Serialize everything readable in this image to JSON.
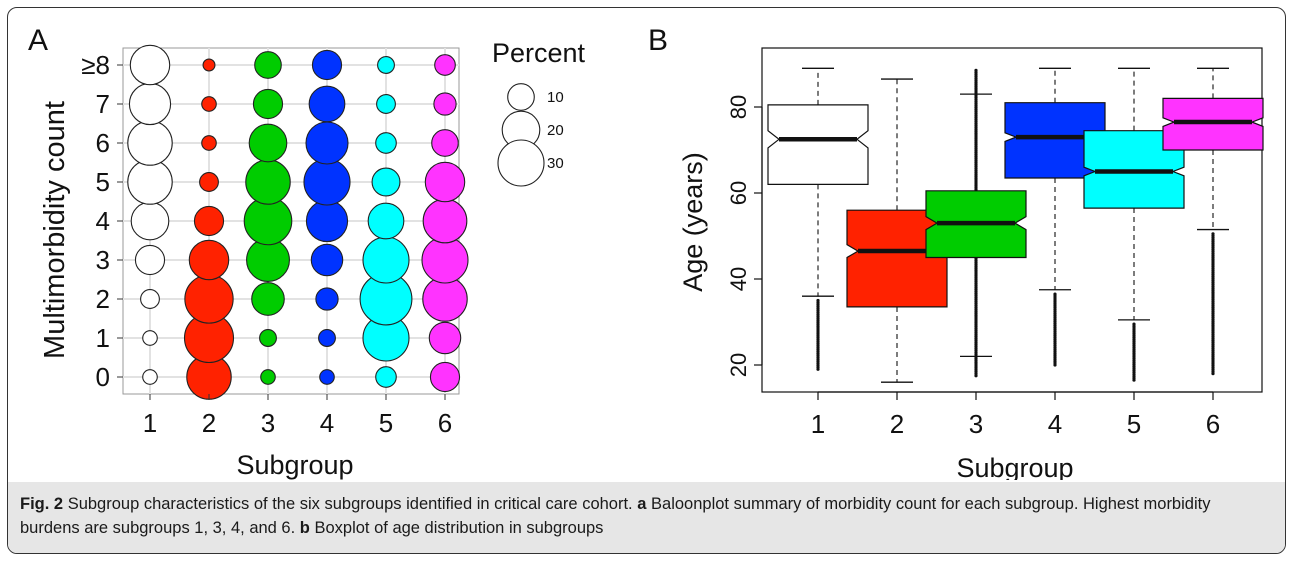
{
  "figure": {
    "caption_label": "Fig. 2",
    "caption_text": "Subgroup characteristics of the six subgroups identified in critical care cohort.",
    "caption_a_label": "a",
    "caption_a_text": "Baloonplot summary of morbidity count for each subgroup. Highest morbidity burdens are subgroups 1, 3, 4, and 6.",
    "caption_b_label": "b",
    "caption_b_text": "Boxplot of age distribution in subgroups"
  },
  "colors": {
    "subgroup_1": "#ffffff",
    "subgroup_2": "#ff2200",
    "subgroup_3": "#00cc00",
    "subgroup_4": "#0033ff",
    "subgroup_5": "#00ffff",
    "subgroup_6": "#ff33ff",
    "caption_background": "#e6e6e6"
  },
  "chart_data": [
    {
      "type": "scatter",
      "panel_label": "A",
      "title": "",
      "xlabel": "Subgroup",
      "ylabel": "Multimorbidity count",
      "categories": [
        "1",
        "2",
        "3",
        "4",
        "5",
        "6"
      ],
      "y_categories": [
        "0",
        "1",
        "2",
        "3",
        "4",
        "5",
        "6",
        "7",
        "≥8"
      ],
      "legend": {
        "title": "Percent",
        "sizes": [
          10,
          20,
          30
        ],
        "labels": [
          "10",
          "20",
          "30"
        ],
        "position": "right"
      },
      "grid": true,
      "percent_matrix": [
        [
          3,
          3,
          5,
          12,
          20,
          28,
          28,
          24,
          22
        ],
        [
          28,
          34,
          33,
          22,
          12,
          5,
          3,
          3,
          2
        ],
        [
          3,
          4,
          15,
          26,
          32,
          28,
          20,
          12,
          10
        ],
        [
          3,
          4,
          7,
          14,
          24,
          30,
          25,
          18,
          12
        ],
        [
          6,
          30,
          38,
          30,
          18,
          11,
          6,
          5,
          4
        ],
        [
          12,
          14,
          28,
          30,
          27,
          22,
          10,
          7,
          6
        ]
      ]
    },
    {
      "type": "box",
      "panel_label": "B",
      "title": "",
      "xlabel": "Subgroup",
      "ylabel": "Age (years)",
      "categories": [
        "1",
        "2",
        "3",
        "4",
        "5",
        "6"
      ],
      "y_ticks": [
        20,
        40,
        60,
        80
      ],
      "ylim": [
        13.5,
        94
      ],
      "notched": true,
      "boxes": [
        {
          "whisker_low": 36,
          "q1": 62,
          "median": 72.5,
          "q3": 80.5,
          "whisker_high": 89,
          "notch_low": 70.5,
          "notch_high": 74.5,
          "outliers_from": 19,
          "outliers_to": 35
        },
        {
          "whisker_low": 16,
          "q1": 33.5,
          "median": 46.5,
          "q3": 56,
          "whisker_high": 86.5,
          "notch_low": 45,
          "notch_high": 48,
          "outliers_from": null,
          "outliers_to": null
        },
        {
          "whisker_low": 22,
          "q1": 45,
          "median": 53,
          "q3": 60.5,
          "whisker_high": 83,
          "notch_low": 51.5,
          "notch_high": 54.5,
          "outliers_from": 17.5,
          "outliers_to": 88.5
        },
        {
          "whisker_low": 37.5,
          "q1": 63.5,
          "median": 73,
          "q3": 81,
          "whisker_high": 89,
          "notch_low": 72,
          "notch_high": 74,
          "outliers_from": 20,
          "outliers_to": 36.5
        },
        {
          "whisker_low": 30.5,
          "q1": 56.5,
          "median": 65,
          "q3": 74.5,
          "whisker_high": 89,
          "notch_low": 64,
          "notch_high": 66,
          "outliers_from": 16.5,
          "outliers_to": 29.5
        },
        {
          "whisker_low": 51.5,
          "q1": 70,
          "median": 76.5,
          "q3": 82,
          "whisker_high": 89,
          "notch_low": 75.5,
          "notch_high": 77.5,
          "outliers_from": 18,
          "outliers_to": 50.5
        }
      ]
    }
  ]
}
